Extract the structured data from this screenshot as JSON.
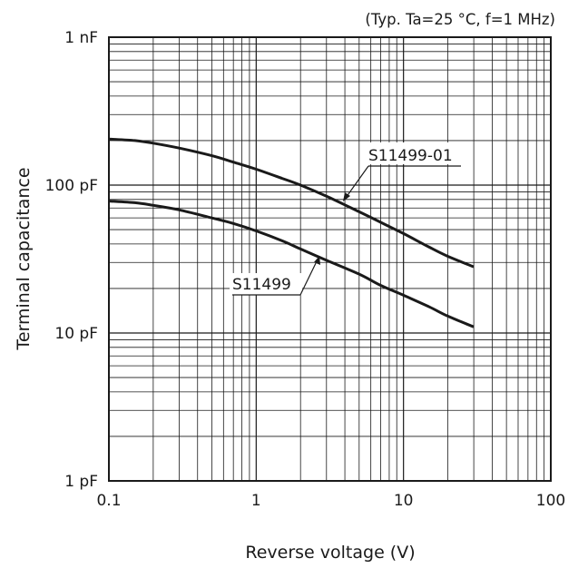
{
  "chart_data": {
    "type": "line",
    "title": "(Typ. Ta=25 °C, f=1 MHz)",
    "xlabel": "Reverse voltage (V)",
    "ylabel": "Terminal capacitance",
    "xscale": "log",
    "yscale": "log",
    "xlim": [
      0.1,
      100
    ],
    "ylim": [
      1,
      1000
    ],
    "grid": true,
    "x_ticks": [
      0.1,
      1,
      10,
      100
    ],
    "x_tick_labels": [
      "0.1",
      "1",
      "10",
      "100"
    ],
    "y_ticks": [
      1,
      10,
      100,
      1000
    ],
    "y_tick_labels": [
      "1 pF",
      "10 pF",
      "100 pF",
      "1 nF"
    ],
    "series": [
      {
        "name": "S11499-01",
        "x": [
          0.1,
          0.15,
          0.2,
          0.3,
          0.5,
          0.7,
          1,
          1.5,
          2,
          3,
          5,
          7,
          10,
          15,
          20,
          30
        ],
        "y": [
          205,
          200,
          192,
          178,
          158,
          143,
          128,
          111,
          100,
          84,
          66,
          56,
          47,
          38,
          33,
          28
        ]
      },
      {
        "name": "S11499",
        "x": [
          0.1,
          0.15,
          0.2,
          0.3,
          0.5,
          0.7,
          1,
          1.5,
          2,
          3,
          5,
          7,
          10,
          15,
          20,
          30
        ],
        "y": [
          78,
          76,
          73,
          68,
          60,
          55,
          49,
          42,
          37,
          31,
          25,
          21,
          18,
          15,
          13,
          11
        ]
      }
    ]
  },
  "labels": {
    "title": "(Typ. Ta=25 °C, f=1 MHz)",
    "xlabel": "Reverse voltage (V)",
    "ylabel": "Terminal capacitance",
    "series_a": "S11499-01",
    "series_b": "S11499"
  }
}
